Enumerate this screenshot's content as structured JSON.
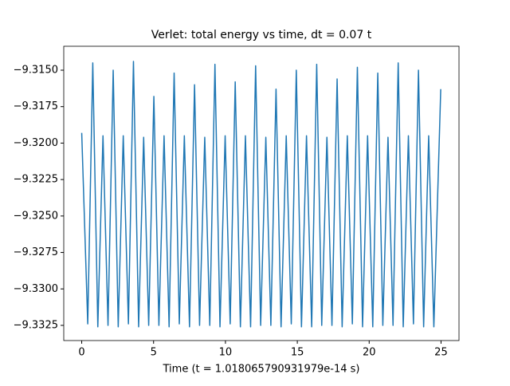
{
  "chart_data": {
    "type": "line",
    "title": "Verlet: total energy vs time, dt = 0.07 t",
    "x_label": "Time (t = 1.018065790931979e-14 s)",
    "x": [
      0.0,
      0.42,
      0.77,
      1.12,
      1.48,
      1.83,
      2.19,
      2.54,
      2.89,
      3.25,
      3.6,
      3.96,
      4.31,
      4.66,
      5.02,
      5.37,
      5.73,
      6.08,
      6.43,
      6.79,
      7.14,
      7.5,
      7.85,
      8.2,
      8.56,
      8.91,
      9.27,
      9.62,
      9.98,
      10.33,
      10.68,
      11.04,
      11.39,
      11.75,
      12.1,
      12.45,
      12.81,
      13.16,
      13.52,
      13.87,
      14.23,
      14.58,
      14.93,
      15.29,
      15.64,
      16.0,
      16.35,
      16.7,
      17.06,
      17.41,
      17.77,
      18.12,
      18.48,
      18.83,
      19.18,
      19.54,
      19.89,
      20.25,
      20.6,
      20.95,
      21.31,
      21.66,
      22.02,
      22.37,
      22.73,
      23.08,
      23.43,
      23.79,
      24.14,
      24.5,
      24.98
    ],
    "series": [
      {
        "color": "#1f77b4",
        "values": [
          -9.3193,
          -9.3324,
          -9.3145,
          -9.3326,
          -9.3195,
          -9.3325,
          -9.315,
          -9.3326,
          -9.3195,
          -9.3324,
          -9.3144,
          -9.3326,
          -9.3196,
          -9.3325,
          -9.3168,
          -9.3325,
          -9.3195,
          -9.3326,
          -9.3152,
          -9.3324,
          -9.3195,
          -9.3326,
          -9.316,
          -9.3325,
          -9.3196,
          -9.3325,
          -9.3146,
          -9.3326,
          -9.3195,
          -9.3324,
          -9.3158,
          -9.3326,
          -9.3195,
          -9.3326,
          -9.3147,
          -9.3325,
          -9.3196,
          -9.3325,
          -9.3163,
          -9.3326,
          -9.3195,
          -9.3324,
          -9.315,
          -9.3326,
          -9.3195,
          -9.3326,
          -9.3146,
          -9.3325,
          -9.3196,
          -9.3325,
          -9.3156,
          -9.3326,
          -9.3195,
          -9.3324,
          -9.3148,
          -9.3326,
          -9.3195,
          -9.3326,
          -9.3152,
          -9.3325,
          -9.3196,
          -9.3325,
          -9.3145,
          -9.3326,
          -9.3195,
          -9.3324,
          -9.315,
          -9.3326,
          -9.3195,
          -9.3326,
          -9.3163
        ]
      }
    ],
    "xlim": [
      -1.25,
      26.25
    ],
    "ylim": [
      -9.33354,
      -9.31336
    ],
    "xticks": [
      0,
      5,
      10,
      15,
      20,
      25
    ],
    "yticks": [
      {
        "value": -9.315,
        "label": "−9.3150"
      },
      {
        "value": -9.3175,
        "label": "−9.3175"
      },
      {
        "value": -9.32,
        "label": "−9.3200"
      },
      {
        "value": -9.3225,
        "label": "−9.3225"
      },
      {
        "value": -9.325,
        "label": "−9.3250"
      },
      {
        "value": -9.3275,
        "label": "−9.3275"
      },
      {
        "value": -9.33,
        "label": "−9.3300"
      },
      {
        "value": -9.3325,
        "label": "−9.3325"
      }
    ],
    "grid": false
  }
}
